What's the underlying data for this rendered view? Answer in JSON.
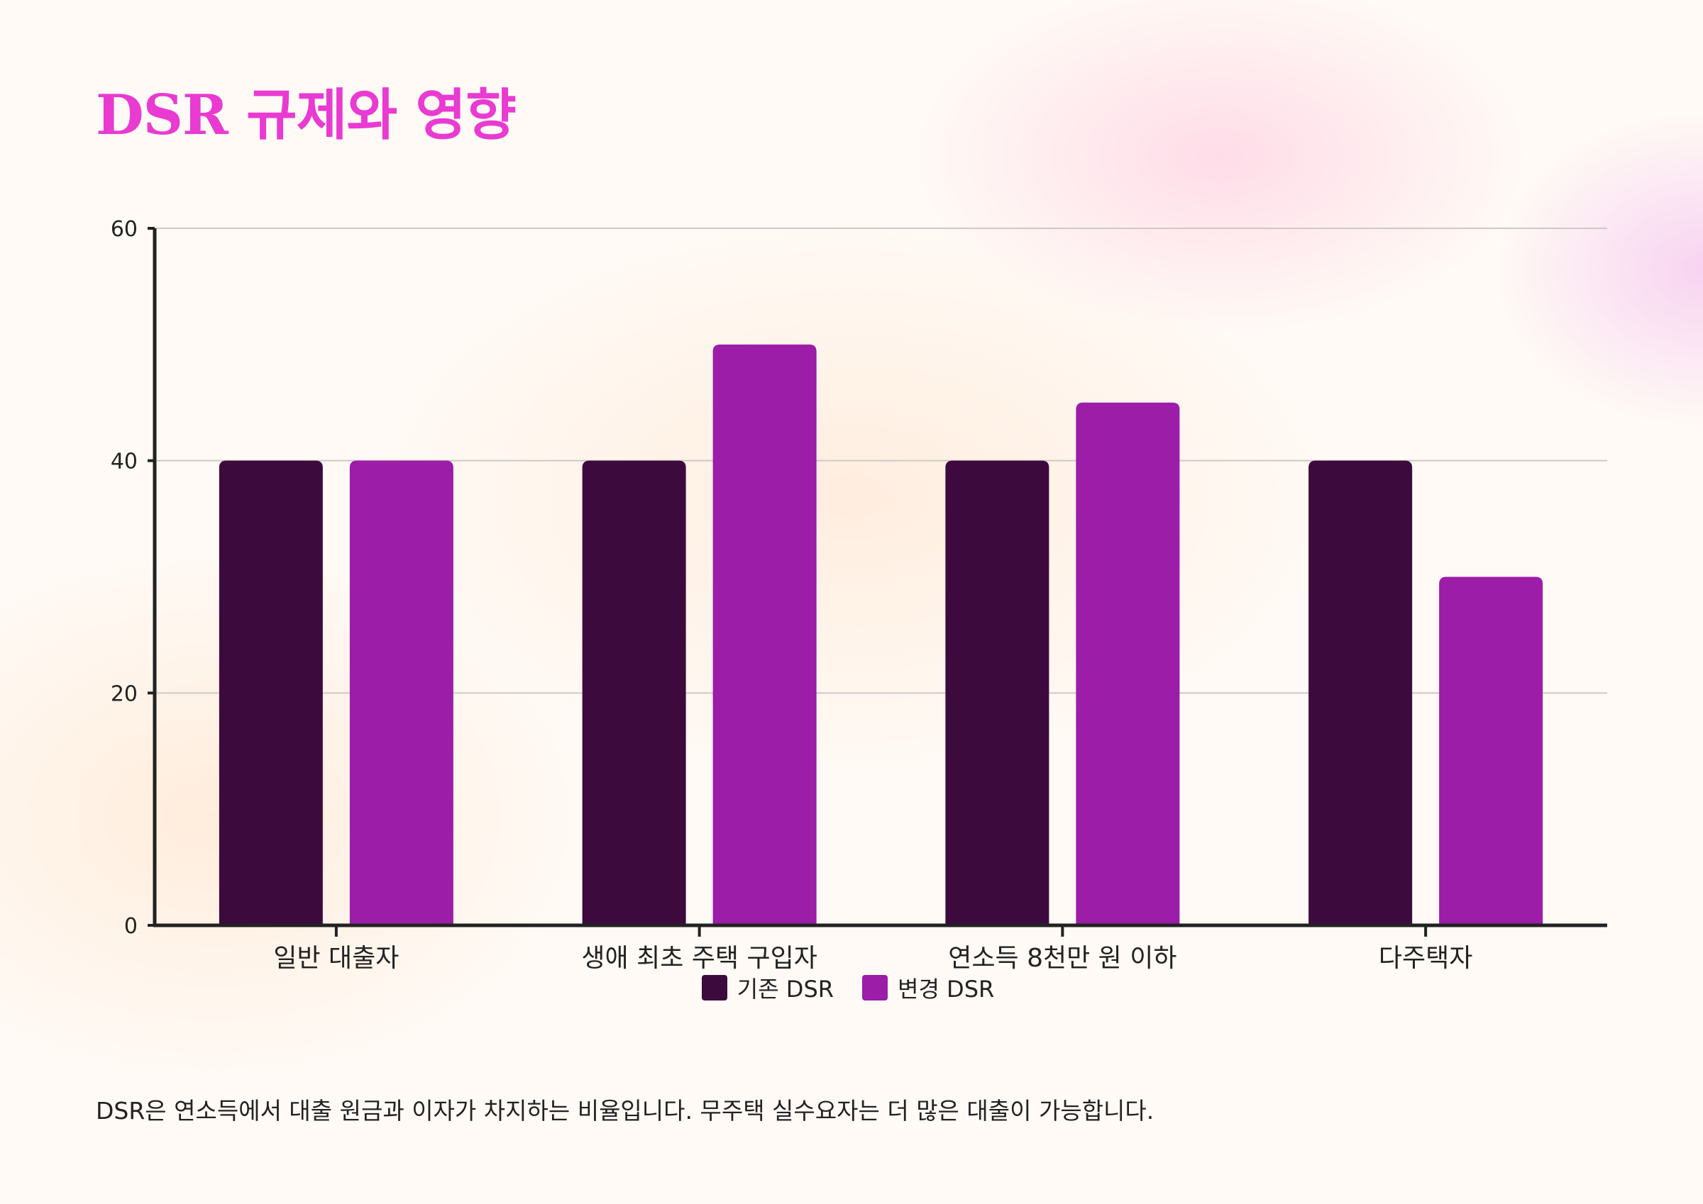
{
  "title": "DSR 규제와 영향",
  "footnote": "DSR은 연소득에서 대출 원금과 이자가 차지하는 비율입니다. 무주택 실수요자는 더 많은 대출이 가능합니다.",
  "chart_data": {
    "type": "bar",
    "title": "DSR 규제와 영향",
    "xlabel": "",
    "ylabel": "",
    "ylim": [
      0,
      60
    ],
    "yticks": [
      0,
      20,
      40,
      60
    ],
    "grid": true,
    "legend_position": "bottom",
    "categories": [
      "일반 대출자",
      "생애 최초 주택 구입자",
      "연소득 8천만 원 이하",
      "다주택자"
    ],
    "series": [
      {
        "name": "기존 DSR",
        "color": "#3d0a3e",
        "values": [
          40,
          40,
          40,
          40
        ]
      },
      {
        "name": "변경 DSR",
        "color": "#9b1da8",
        "values": [
          40,
          50,
          45,
          30
        ]
      }
    ]
  }
}
